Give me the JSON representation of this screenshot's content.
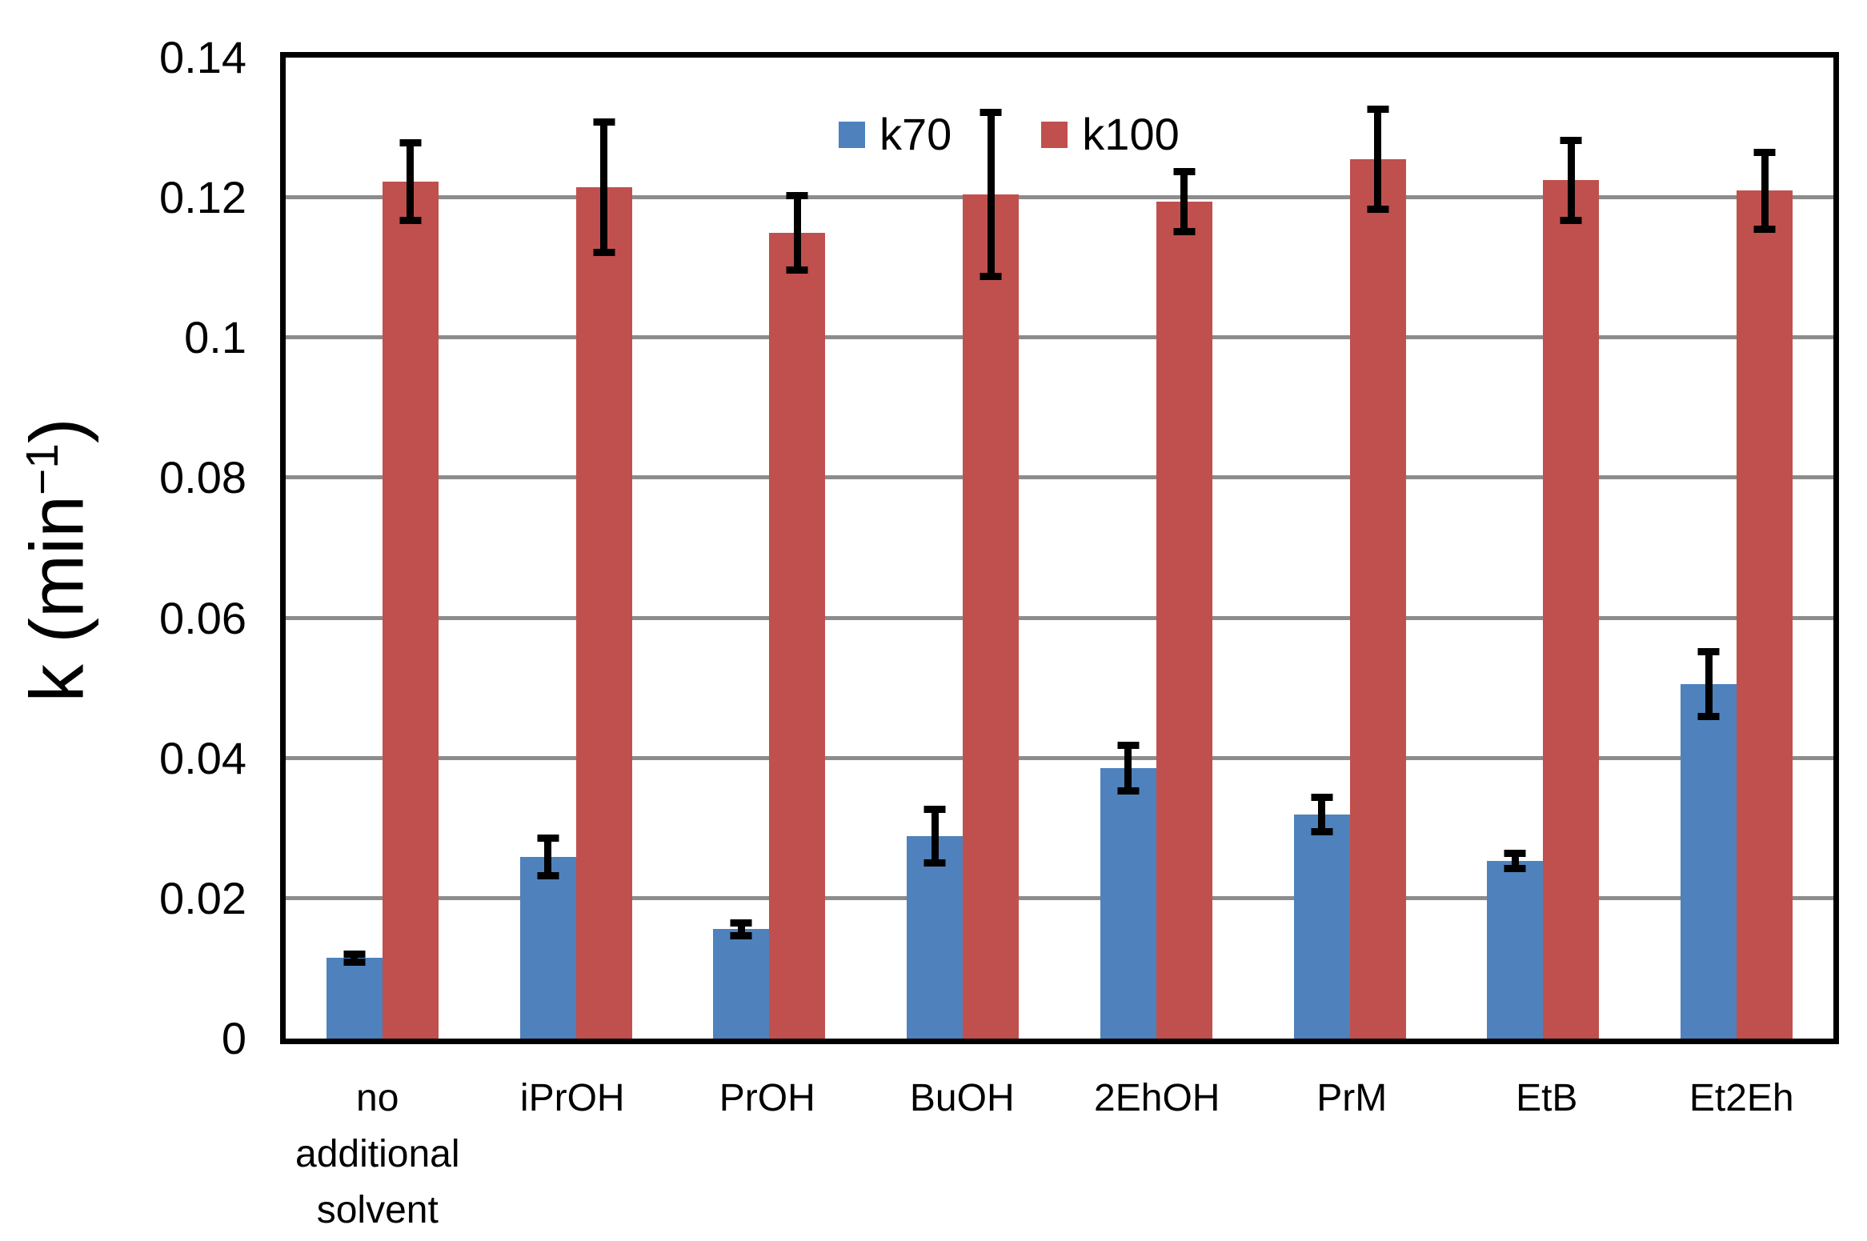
{
  "figure": {
    "ylabel_prefix": "k (min",
    "ylabel_sup": "−1",
    "ylabel_suffix": ")"
  },
  "colors": {
    "series_k70": "#4F81BD",
    "series_k100": "#C0504D",
    "gridline": "#8C8C8C",
    "axis": "#000000",
    "error_bar": "#000000",
    "background": "#FFFFFF"
  },
  "chart_data": {
    "type": "bar",
    "title": "",
    "xlabel": "",
    "ylabel": "k (min⁻¹)",
    "ylim": [
      0,
      0.14
    ],
    "ytick_step": 0.02,
    "grid": true,
    "error_bars": true,
    "legend_position": "top-center-inside",
    "categories": [
      "no additional solvent",
      "iPrOH",
      "PrOH",
      "BuOH",
      "2EhOH",
      "PrM",
      "EtB",
      "Et2Eh"
    ],
    "yticks": [
      {
        "value": 0,
        "label": "0"
      },
      {
        "value": 0.02,
        "label": "0.02"
      },
      {
        "value": 0.04,
        "label": "0.04"
      },
      {
        "value": 0.06,
        "label": "0.06"
      },
      {
        "value": 0.08,
        "label": "0.08"
      },
      {
        "value": 0.1,
        "label": "0.1"
      },
      {
        "value": 0.12,
        "label": "0.12"
      },
      {
        "value": 0.14,
        "label": "0.14"
      }
    ],
    "series": [
      {
        "name": "k70",
        "color": "#4F81BD",
        "values": [
          0.0115,
          0.0259,
          0.0156,
          0.0289,
          0.0386,
          0.032,
          0.0254,
          0.0506
        ],
        "errors": [
          0.0011,
          0.0032,
          0.0014,
          0.0043,
          0.0038,
          0.003,
          0.0016,
          0.0051
        ]
      },
      {
        "name": "k100",
        "color": "#C0504D",
        "values": [
          0.1223,
          0.1215,
          0.115,
          0.1205,
          0.1195,
          0.1255,
          0.1225,
          0.121
        ],
        "errors": [
          0.0061,
          0.0098,
          0.0058,
          0.0122,
          0.0048,
          0.0076,
          0.0062,
          0.006
        ]
      }
    ]
  }
}
